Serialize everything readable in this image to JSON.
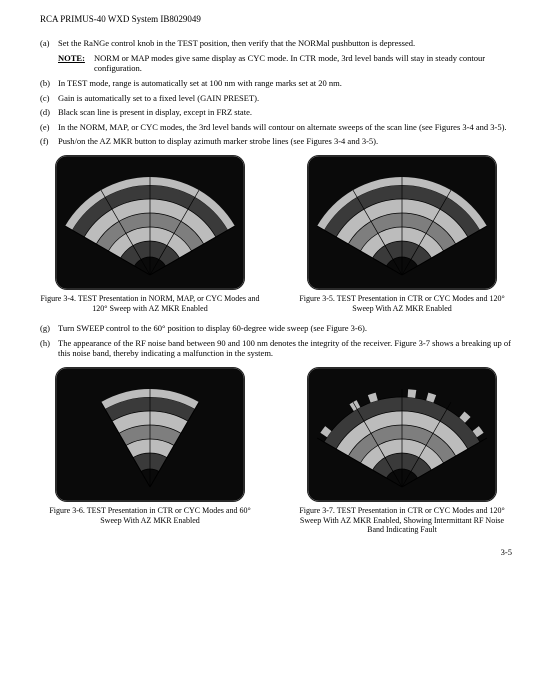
{
  "header": "RCA PRIMUS-40 WXD System IB8029049",
  "items_top": [
    {
      "l": "(a)",
      "t": "Set the RaNGe control knob in the TEST position, then verify that the NORMal pushbutton is depressed."
    },
    {
      "l": "",
      "t": ""
    }
  ],
  "note": {
    "label": "NOTE:",
    "text": "NORM or MAP modes give same display as CYC mode. In CTR mode, 3rd level bands will stay in steady contour configuration."
  },
  "items_mid": [
    {
      "l": "(b)",
      "t": "In TEST mode, range is automatically set at 100 nm with range marks set at 20 nm."
    },
    {
      "l": "(c)",
      "t": "Gain is automatically set to a fixed level (GAIN PRESET)."
    },
    {
      "l": "(d)",
      "t": "Black scan line is present in display, except in FRZ state."
    },
    {
      "l": "(e)",
      "t": "In the NORM, MAP, or CYC modes, the 3rd level bands will contour on alternate sweeps of the scan line (see Figures 3-4 and 3-5)."
    },
    {
      "l": "(f)",
      "t": "Push/on the AZ MKR button to display azimuth marker strobe lines (see Figures 3-4 and 3-5)."
    }
  ],
  "fig_top_left": {
    "caption": "Figure 3-4. TEST Presentation in NORM, MAP, or CYC Modes and 120° Sweep with AZ MKR Enabled"
  },
  "fig_top_right": {
    "caption": "Figure 3-5. TEST Presentation in CTR or CYC Modes and 120° Sweep With AZ MKR Enabled"
  },
  "items_bot": [
    {
      "l": "(g)",
      "t": "Turn SWEEP control to the 60° position to display 60-degree wide sweep (see Figure 3-6)."
    },
    {
      "l": "(h)",
      "t": "The appearance of the RF noise band between 90 and 100 nm denotes the integrity of the receiver. Figure 3-7 shows a breaking up of this noise band, thereby indicating a malfunction in the system."
    }
  ],
  "fig_bot_left": {
    "caption": "Figure 3-6. TEST Presentation in CTR or CYC Modes and 60° Sweep With AZ MKR Enabled"
  },
  "fig_bot_right": {
    "caption": "Figure 3-7. TEST Presentation in CTR or CYC Modes and 120° Sweep With AZ MKR Enabled, Showing Intermittant RF Noise Band Indicating Fault"
  },
  "page_number": "3-5",
  "radar": {
    "screen_bg": "#0a0a0a",
    "frame_bg": "#fdfdfd",
    "bands": [
      "#3a3a3a",
      "#bcbcbc",
      "#7e7e7e",
      "#bcbcbc",
      "#3a3a3a"
    ],
    "noise": "#bcbcbc",
    "ring": "#000000",
    "marker": "#000000"
  }
}
